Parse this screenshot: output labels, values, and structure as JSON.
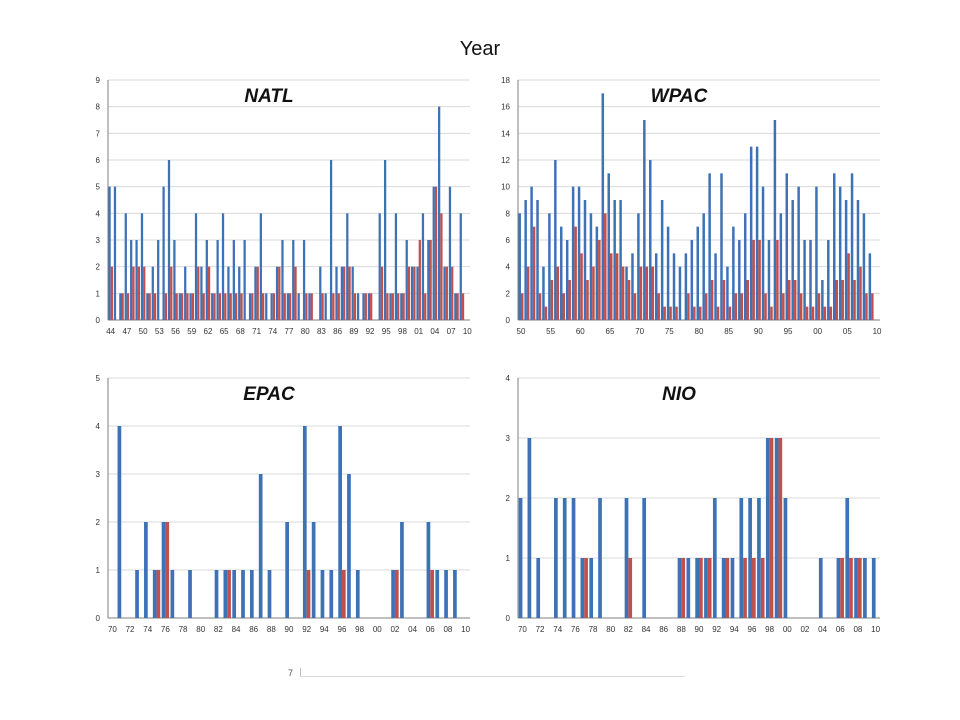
{
  "figure": {
    "title": "Year",
    "footer_number": "7"
  },
  "colors": {
    "series_total": "#3e72b7",
    "series_other": "#c0504d",
    "grid": "#d9d9d9",
    "axis": "#7f7f7f"
  },
  "chart_data": [
    {
      "type": "bar",
      "title": "NATL",
      "ylim": [
        0,
        9
      ],
      "yticks": [
        0,
        1,
        2,
        3,
        4,
        5,
        6,
        7,
        8,
        9
      ],
      "grid": true,
      "x_start": 1944,
      "x_end": 2010,
      "tick_labels": [
        "44",
        "47",
        "50",
        "53",
        "56",
        "59",
        "62",
        "65",
        "68",
        "71",
        "74",
        "77",
        "80",
        "83",
        "86",
        "89",
        "92",
        "95",
        "98",
        "01",
        "04",
        "07",
        "10"
      ],
      "series": [
        {
          "values": [
            5,
            5,
            1,
            4,
            3,
            3,
            4,
            1,
            2,
            3,
            5,
            6,
            3,
            1,
            2,
            1,
            4,
            2,
            3,
            1,
            3,
            4,
            2,
            3,
            2,
            3,
            1,
            2,
            4,
            1,
            1,
            2,
            3,
            1,
            3,
            1,
            3,
            1,
            0,
            2,
            1,
            6,
            2,
            2,
            4,
            2,
            1,
            1,
            1,
            0,
            4,
            6,
            1,
            4,
            1,
            3,
            2,
            2,
            4,
            3,
            5,
            8,
            2,
            5,
            1,
            4,
            0
          ]
        },
        {
          "values": [
            2,
            0,
            1,
            1,
            2,
            2,
            2,
            1,
            1,
            0,
            1,
            2,
            1,
            1,
            1,
            1,
            2,
            1,
            2,
            1,
            1,
            1,
            1,
            1,
            1,
            0,
            1,
            2,
            1,
            0,
            1,
            2,
            1,
            1,
            2,
            0,
            1,
            1,
            0,
            1,
            0,
            1,
            1,
            2,
            2,
            1,
            0,
            1,
            1,
            0,
            2,
            1,
            1,
            1,
            1,
            2,
            2,
            3,
            1,
            3,
            5,
            4,
            2,
            2,
            1,
            1,
            0
          ]
        }
      ]
    },
    {
      "type": "bar",
      "title": "WPAC",
      "ylim": [
        0,
        18
      ],
      "yticks": [
        0,
        2,
        4,
        6,
        8,
        10,
        12,
        14,
        16,
        18
      ],
      "grid": true,
      "x_start": 1950,
      "x_end": 2010,
      "tick_labels": [
        "50",
        "55",
        "60",
        "65",
        "70",
        "75",
        "80",
        "85",
        "90",
        "95",
        "00",
        "05",
        "10"
      ],
      "series": [
        {
          "values": [
            8,
            9,
            10,
            9,
            4,
            8,
            12,
            7,
            6,
            10,
            10,
            9,
            8,
            7,
            17,
            11,
            9,
            9,
            4,
            5,
            8,
            15,
            12,
            5,
            9,
            7,
            5,
            4,
            5,
            6,
            7,
            8,
            11,
            5,
            11,
            4,
            7,
            6,
            8,
            13,
            13,
            10,
            6,
            15,
            8,
            11,
            9,
            10,
            6,
            6,
            10,
            3,
            6,
            11,
            10,
            9,
            11,
            9,
            8,
            5,
            0
          ]
        },
        {
          "values": [
            2,
            4,
            7,
            2,
            1,
            3,
            4,
            2,
            3,
            7,
            5,
            3,
            4,
            6,
            8,
            5,
            5,
            4,
            3,
            2,
            4,
            4,
            4,
            2,
            1,
            1,
            1,
            0,
            2,
            1,
            1,
            2,
            3,
            1,
            3,
            1,
            2,
            2,
            3,
            6,
            6,
            2,
            1,
            6,
            2,
            3,
            3,
            2,
            1,
            1,
            2,
            1,
            1,
            3,
            3,
            5,
            3,
            4,
            2,
            2,
            0
          ]
        }
      ]
    },
    {
      "type": "bar",
      "title": "EPAC",
      "ylim": [
        0,
        5
      ],
      "yticks": [
        0,
        1,
        2,
        3,
        4,
        5
      ],
      "grid": true,
      "x_start": 1970,
      "x_end": 2010,
      "tick_labels": [
        "70",
        "72",
        "74",
        "76",
        "78",
        "80",
        "82",
        "84",
        "86",
        "88",
        "90",
        "92",
        "94",
        "96",
        "98",
        "00",
        "02",
        "04",
        "06",
        "08",
        "10"
      ],
      "series": [
        {
          "values": [
            0,
            4,
            0,
            1,
            2,
            1,
            2,
            1,
            0,
            1,
            0,
            0,
            1,
            1,
            1,
            1,
            1,
            3,
            1,
            0,
            2,
            0,
            4,
            2,
            1,
            1,
            4,
            3,
            1,
            0,
            0,
            0,
            1,
            2,
            0,
            0,
            2,
            1,
            1,
            1,
            0
          ]
        },
        {
          "values": [
            0,
            0,
            0,
            0,
            0,
            1,
            2,
            0,
            0,
            0,
            0,
            0,
            0,
            1,
            0,
            0,
            0,
            0,
            0,
            0,
            0,
            0,
            1,
            0,
            0,
            0,
            1,
            0,
            0,
            0,
            0,
            0,
            1,
            0,
            0,
            0,
            1,
            0,
            0,
            0,
            0
          ]
        }
      ]
    },
    {
      "type": "bar",
      "title": "NIO",
      "ylim": [
        0,
        4
      ],
      "yticks": [
        0,
        1,
        2,
        3,
        4
      ],
      "grid": true,
      "x_start": 1970,
      "x_end": 2010,
      "tick_labels": [
        "70",
        "72",
        "74",
        "76",
        "78",
        "80",
        "82",
        "84",
        "86",
        "88",
        "90",
        "92",
        "94",
        "96",
        "98",
        "00",
        "02",
        "04",
        "06",
        "08",
        "10"
      ],
      "series": [
        {
          "values": [
            2,
            3,
            1,
            0,
            2,
            2,
            2,
            1,
            1,
            2,
            0,
            0,
            2,
            0,
            2,
            0,
            0,
            0,
            1,
            1,
            1,
            1,
            2,
            1,
            1,
            2,
            2,
            2,
            3,
            3,
            2,
            0,
            0,
            0,
            1,
            0,
            1,
            2,
            1,
            1,
            1
          ]
        },
        {
          "values": [
            0,
            0,
            0,
            0,
            0,
            0,
            0,
            1,
            0,
            0,
            0,
            0,
            1,
            0,
            0,
            0,
            0,
            0,
            1,
            0,
            1,
            1,
            0,
            1,
            0,
            1,
            1,
            1,
            3,
            3,
            0,
            0,
            0,
            0,
            0,
            0,
            1,
            1,
            1,
            0,
            0
          ]
        }
      ]
    }
  ]
}
